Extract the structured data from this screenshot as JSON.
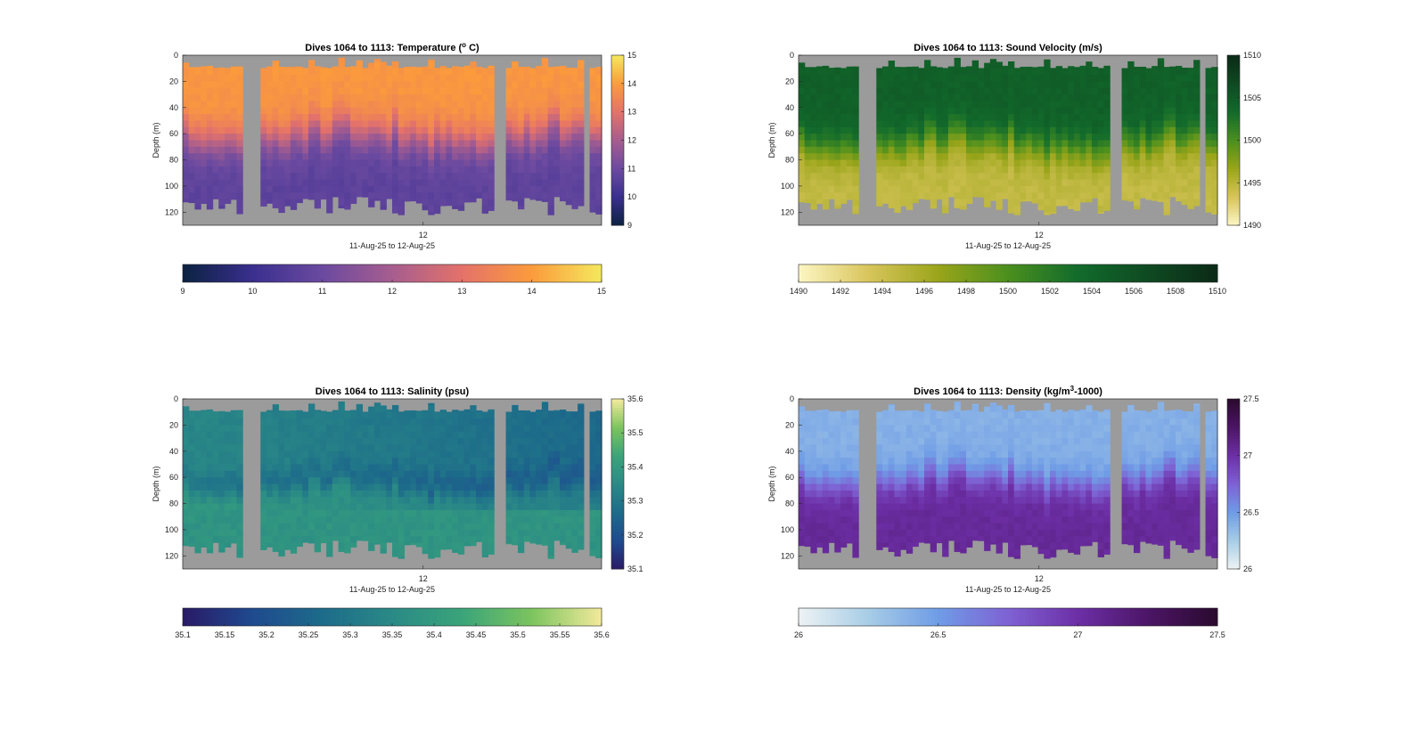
{
  "chart_data": [
    {
      "type": "heatmap",
      "id": "temperature",
      "title_pre": "Dives 1064 to 1113: Temperature (",
      "title_sup": "o",
      "title_post": " C)",
      "ylabel": "Depth (m)",
      "xlabel": "11-Aug-25 to 12-Aug-25",
      "xtick_label": "12",
      "yticks": [
        0,
        20,
        40,
        60,
        80,
        100,
        120
      ],
      "ylim": [
        0,
        130
      ],
      "clim": [
        9,
        15
      ],
      "cbar_ticks": [
        "15",
        "14",
        "13",
        "12",
        "11",
        "10",
        "9"
      ],
      "hbar_ticks": [
        "9",
        "10",
        "11",
        "12",
        "13",
        "14",
        "15"
      ],
      "colormap": [
        "#0b2240",
        "#3a2f8f",
        "#6b4aa0",
        "#a65d8f",
        "#e4726a",
        "#fb9b3c",
        "#f4e85e"
      ],
      "profile": {
        "surface": 13.9,
        "deep": 10.7,
        "thermocline_depth": 62,
        "width": 18
      }
    },
    {
      "type": "heatmap",
      "id": "sound_velocity",
      "title": "Dives 1064 to 1113: Sound Velocity (m/s)",
      "ylabel": "Depth (m)",
      "xlabel": "11-Aug-25 to 12-Aug-25",
      "xtick_label": "12",
      "yticks": [
        0,
        20,
        40,
        60,
        80,
        100,
        120
      ],
      "ylim": [
        0,
        130
      ],
      "clim": [
        1490,
        1510
      ],
      "cbar_ticks": [
        "1510",
        "1505",
        "1500",
        "1495",
        "1490"
      ],
      "hbar_ticks": [
        "1490",
        "1492",
        "1494",
        "1496",
        "1498",
        "1500",
        "1502",
        "1504",
        "1506",
        "1508",
        "1510"
      ],
      "colormap": [
        "#fdf6c4",
        "#d8c55c",
        "#9aa51a",
        "#4b8f1e",
        "#126b2c",
        "#0f4a22",
        "#0b2a16"
      ],
      "profile": {
        "surface": 1504.5,
        "deep": 1494.5,
        "thermocline_depth": 68,
        "width": 16
      }
    },
    {
      "type": "heatmap",
      "id": "salinity",
      "title": "Dives 1064 to 1113: Salinity (psu)",
      "ylabel": "Depth (m)",
      "xlabel": "11-Aug-25 to 12-Aug-25",
      "xtick_label": "12",
      "yticks": [
        0,
        20,
        40,
        60,
        80,
        100,
        120
      ],
      "ylim": [
        0,
        130
      ],
      "clim": [
        35.1,
        35.6
      ],
      "cbar_ticks": [
        "35.6",
        "35.5",
        "35.4",
        "35.3",
        "35.2",
        "35.1"
      ],
      "hbar_ticks": [
        "35.1",
        "35.15",
        "35.2",
        "35.25",
        "35.3",
        "35.35",
        "35.4",
        "35.45",
        "35.5",
        "35.55",
        "35.6"
      ],
      "colormap": [
        "#291a66",
        "#1f4a8f",
        "#1d6b8a",
        "#2a8a86",
        "#3aa47a",
        "#7cc45e",
        "#f3ea9c"
      ],
      "profile": {
        "surface": 35.36,
        "deep": 35.4,
        "thermocline_depth": 62,
        "width": 14
      }
    },
    {
      "type": "heatmap",
      "id": "density",
      "title_pre": "Dives 1064 to 1113: Density (kg/m",
      "title_sup": "3",
      "title_post": "-1000)",
      "ylabel": "Depth (m)",
      "xlabel": "11-Aug-25 to 12-Aug-25",
      "xtick_label": "12",
      "yticks": [
        0,
        20,
        40,
        60,
        80,
        100,
        120
      ],
      "ylim": [
        0,
        130
      ],
      "clim": [
        26,
        27.5
      ],
      "cbar_ticks": [
        "27.5",
        "27",
        "26.5",
        "26"
      ],
      "hbar_ticks": [
        "26",
        "26.5",
        "27",
        "27.5"
      ],
      "colormap": [
        "#eef3f4",
        "#a7cde6",
        "#6f9ce6",
        "#7e62d4",
        "#6d2fa6",
        "#4c1566",
        "#2a0a2e"
      ],
      "profile": {
        "surface": 26.4,
        "deep": 27.05,
        "thermocline_depth": 62,
        "width": 14
      }
    }
  ]
}
